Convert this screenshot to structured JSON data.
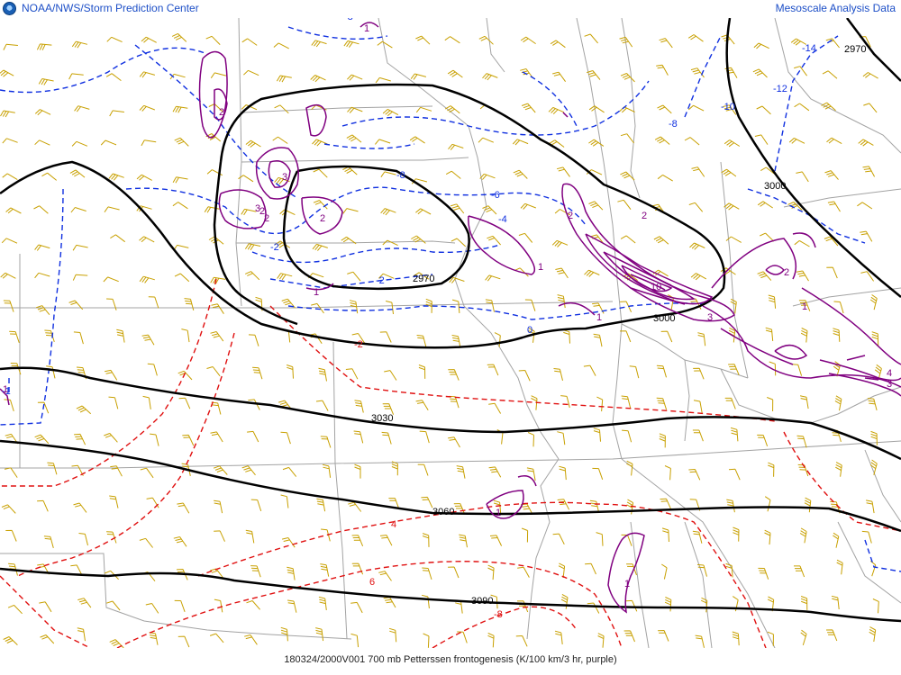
{
  "header": {
    "agency": "NOAA/NWS/Storm Prediction Center",
    "product": "Mesoscale Analysis Data"
  },
  "footer": {
    "caption": "180324/2000V001 700 mb Petterssen frontogenesis (K/100 km/3 hr, purple)"
  },
  "colors": {
    "height_contours": "#000000",
    "temp_positive": "#e01010",
    "temp_negative": "#1030e0",
    "frontogenesis": "#800080",
    "wind_barbs": "#c8a000",
    "boundaries": "#a0a0a0"
  },
  "height_labels": [
    "2970",
    "3000",
    "3000",
    "2970",
    "3030",
    "3060",
    "3090"
  ],
  "temp_labels": [
    "-14",
    "-12",
    "-10",
    "-8",
    "-8",
    "-6",
    "-4",
    "-2",
    "0",
    "-2",
    "2",
    "4",
    "6",
    "-8",
    "-8",
    "-2",
    "-1"
  ],
  "fronto_labels": [
    "2",
    "3",
    "2",
    "2",
    "3",
    "2",
    "1",
    "1",
    "2",
    "2",
    "10",
    "1",
    "3",
    "2",
    "1",
    "1",
    "4",
    "3",
    "1",
    "1",
    "1",
    "1"
  ]
}
